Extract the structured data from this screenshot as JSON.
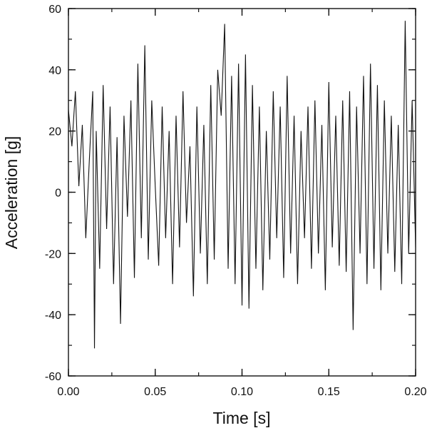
{
  "chart_data": {
    "type": "line",
    "title": "",
    "xlabel": "Time [s]",
    "ylabel": "Acceleration [g]",
    "xlim": [
      0.0,
      0.2
    ],
    "ylim": [
      -60,
      60
    ],
    "x_ticks": [
      0.0,
      0.05,
      0.1,
      0.15,
      0.2
    ],
    "x_tick_labels": [
      "0.00",
      "0.05",
      "0.10",
      "0.15",
      "0.20"
    ],
    "y_ticks": [
      -60,
      -40,
      -20,
      0,
      20,
      40,
      60
    ],
    "y_tick_labels": [
      "-60",
      "-40",
      "-20",
      "0",
      "20",
      "40",
      "60"
    ],
    "grid": false,
    "legend": "none",
    "line_color": "#111111",
    "series": [
      {
        "x": [
          0.0,
          0.002,
          0.004,
          0.006,
          0.008,
          0.01,
          0.012,
          0.014,
          0.015,
          0.016,
          0.018,
          0.02,
          0.022,
          0.024,
          0.026,
          0.028,
          0.03,
          0.032,
          0.034,
          0.036,
          0.038,
          0.04,
          0.042,
          0.044,
          0.046,
          0.048,
          0.05,
          0.052,
          0.054,
          0.056,
          0.058,
          0.06,
          0.062,
          0.064,
          0.066,
          0.068,
          0.07,
          0.072,
          0.074,
          0.076,
          0.078,
          0.08,
          0.082,
          0.084,
          0.086,
          0.088,
          0.09,
          0.092,
          0.094,
          0.096,
          0.098,
          0.1,
          0.102,
          0.104,
          0.106,
          0.108,
          0.11,
          0.112,
          0.114,
          0.116,
          0.118,
          0.12,
          0.122,
          0.124,
          0.126,
          0.128,
          0.13,
          0.132,
          0.134,
          0.136,
          0.138,
          0.14,
          0.142,
          0.144,
          0.146,
          0.148,
          0.15,
          0.152,
          0.154,
          0.156,
          0.158,
          0.16,
          0.162,
          0.164,
          0.166,
          0.168,
          0.17,
          0.172,
          0.174,
          0.176,
          0.178,
          0.18,
          0.182,
          0.184,
          0.186,
          0.188,
          0.19,
          0.192,
          0.194,
          0.196,
          0.198,
          0.2
        ],
        "values": [
          27,
          15,
          33,
          2,
          22,
          -15,
          10,
          33,
          -51,
          20,
          -25,
          35,
          -12,
          28,
          -30,
          18,
          -43,
          25,
          -8,
          30,
          -28,
          42,
          -15,
          48,
          -22,
          30,
          2,
          -24,
          28,
          -15,
          20,
          -30,
          25,
          -18,
          33,
          -10,
          15,
          -34,
          28,
          -20,
          22,
          -30,
          35,
          -22,
          40,
          25,
          55,
          -25,
          38,
          -30,
          42,
          -37,
          45,
          -38,
          35,
          -25,
          28,
          -32,
          20,
          -22,
          33,
          -15,
          28,
          -28,
          38,
          -20,
          25,
          -30,
          20,
          -15,
          28,
          -25,
          30,
          -20,
          22,
          -32,
          36,
          -18,
          25,
          -24,
          30,
          -26,
          33,
          -45,
          28,
          -20,
          38,
          -30,
          42,
          -25,
          35,
          -32,
          30,
          -20,
          25,
          -26,
          22,
          -30,
          56,
          -20,
          30,
          -18
        ]
      }
    ]
  }
}
